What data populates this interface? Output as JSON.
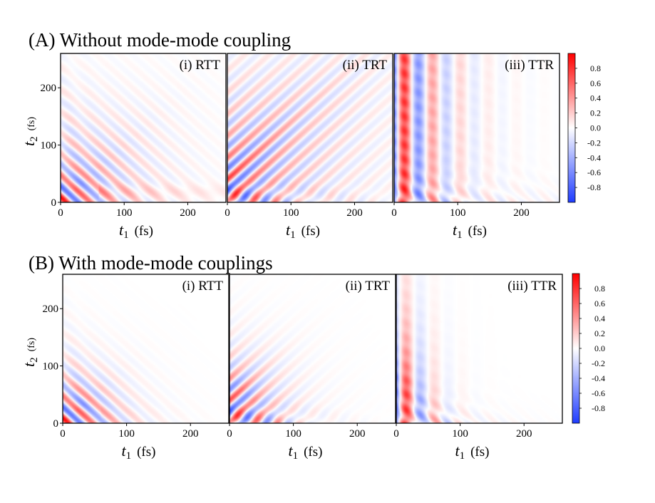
{
  "figure": {
    "rows": [
      {
        "title": "(A) Without mode-mode coupling",
        "couplings": false,
        "colorbar_ticks": [
          "0.8",
          "0.6",
          "0.4",
          "0.2",
          "0.0",
          "-0.2",
          "-0.4",
          "-0.6",
          "-0.8"
        ],
        "panels": [
          {
            "label": "(i) RTT",
            "pattern": "RTT"
          },
          {
            "label": "(ii) TRT",
            "pattern": "TRT"
          },
          {
            "label": "(iii) TTR",
            "pattern": "TTR"
          }
        ]
      },
      {
        "title": "(B) With mode-mode couplings",
        "couplings": true,
        "colorbar_ticks": [
          "0.8",
          "0.6",
          "0.4",
          "0.2",
          "0.0",
          "-0.2",
          "-0.4",
          "-0.6",
          "-0.8"
        ],
        "panels": [
          {
            "label": "(i) RTT",
            "pattern": "RTT"
          },
          {
            "label": "(ii) TRT",
            "pattern": "TRT"
          },
          {
            "label": "(iii) TTR",
            "pattern": "TTR"
          }
        ]
      }
    ]
  },
  "chart_data": {
    "type": "heatmap",
    "xlabel_var": "t",
    "xlabel_sub": "1",
    "xlabel_unit": "(fs)",
    "ylabel_var": "t",
    "ylabel_sub": "2",
    "ylabel_unit": "(fs)",
    "xlim": [
      0,
      260
    ],
    "ylim": [
      0,
      260
    ],
    "xticks": [
      0,
      100,
      200
    ],
    "yticks": [
      0,
      100,
      200
    ],
    "clim": [
      -1,
      1
    ],
    "colormap": {
      "neg": "#1f3cff",
      "zero": "#ffffff",
      "pos": "#ff0000"
    }
  }
}
